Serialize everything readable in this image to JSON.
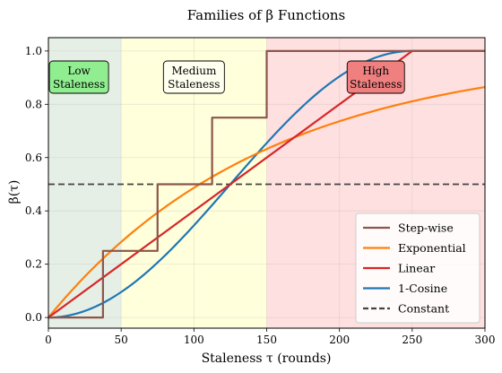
{
  "chart_data": {
    "type": "line",
    "title": "Families of β Functions",
    "xlabel": "Staleness τ (rounds)",
    "ylabel": "β(τ)",
    "xlim": [
      0,
      300
    ],
    "ylim": [
      -0.04,
      1.05
    ],
    "x_ticks": [
      "0",
      "50",
      "100",
      "150",
      "200",
      "250",
      "300"
    ],
    "y_ticks": [
      "0.0",
      "0.2",
      "0.4",
      "0.6",
      "0.8",
      "1.0"
    ],
    "grid": true,
    "legend_position": "lower right",
    "zones": [
      {
        "label_line1": "Low",
        "label_line2": "Staleness",
        "x_range": [
          0,
          50
        ],
        "color": "#2e7d32",
        "box_color": "#90ee90"
      },
      {
        "label_line1": "Medium",
        "label_line2": "Staleness",
        "x_range": [
          50,
          150
        ],
        "color": "#ffff99",
        "box_color": "#fffff0"
      },
      {
        "label_line1": "High",
        "label_line2": "Staleness",
        "x_range": [
          150,
          300
        ],
        "color": "#ff9999",
        "box_color": "#f08080"
      }
    ],
    "series": [
      {
        "name": "Step-wise",
        "color": "#8c564b",
        "x": [
          0,
          37.5,
          37.5,
          75,
          75,
          112.5,
          112.5,
          150,
          150,
          300
        ],
        "y": [
          0,
          0,
          0.25,
          0.25,
          0.5,
          0.5,
          0.75,
          0.75,
          1.0,
          1.0
        ]
      },
      {
        "name": "Exponential",
        "color": "#ff7f0e",
        "x": [
          0,
          25,
          50,
          75,
          100,
          125,
          150,
          175,
          200,
          225,
          250,
          275,
          300
        ],
        "y": [
          0,
          0.154,
          0.284,
          0.394,
          0.487,
          0.565,
          0.632,
          0.689,
          0.736,
          0.777,
          0.811,
          0.84,
          0.865
        ]
      },
      {
        "name": "Linear",
        "color": "#d62728",
        "x": [
          0,
          250,
          300
        ],
        "y": [
          0,
          1.0,
          1.0
        ]
      },
      {
        "name": "1-Cosine",
        "color": "#1f77b4",
        "x": [
          0,
          25,
          50,
          75,
          100,
          125,
          150,
          175,
          200,
          225,
          250,
          275,
          300
        ],
        "y": [
          0,
          0.024,
          0.095,
          0.206,
          0.345,
          0.5,
          0.655,
          0.794,
          0.905,
          0.976,
          1.0,
          1.0,
          1.0
        ]
      },
      {
        "name": "Constant",
        "color": "#444444",
        "dashed": true,
        "x": [
          0,
          300
        ],
        "y": [
          0.5,
          0.5
        ]
      }
    ]
  }
}
